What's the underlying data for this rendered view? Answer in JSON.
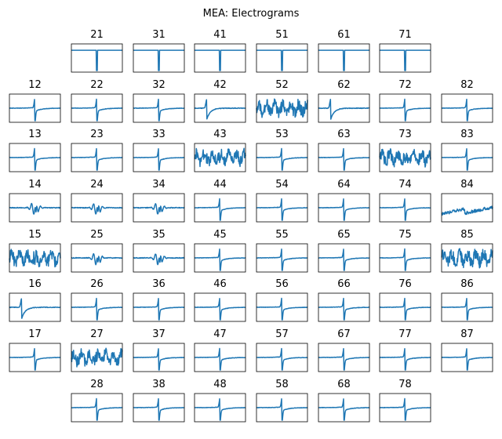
{
  "chart_data": {
    "type": "line",
    "title": "MEA: Electrograms",
    "layout": "8x8 grid of electrode panels, corner positions empty, no axis ticks",
    "color": "#1f77b4",
    "grid": false,
    "legend": "none",
    "panels": [
      {
        "label": "21",
        "row": 0,
        "col": 1,
        "shape": "spike"
      },
      {
        "label": "31",
        "row": 0,
        "col": 2,
        "shape": "spike"
      },
      {
        "label": "41",
        "row": 0,
        "col": 3,
        "shape": "spike"
      },
      {
        "label": "51",
        "row": 0,
        "col": 4,
        "shape": "spike"
      },
      {
        "label": "61",
        "row": 0,
        "col": 5,
        "shape": "spike"
      },
      {
        "label": "71",
        "row": 0,
        "col": 6,
        "shape": "spike"
      },
      {
        "label": "12",
        "row": 1,
        "col": 0,
        "shape": "biphasic"
      },
      {
        "label": "22",
        "row": 1,
        "col": 1,
        "shape": "biphasic"
      },
      {
        "label": "32",
        "row": 1,
        "col": 2,
        "shape": "biphasic"
      },
      {
        "label": "42",
        "row": 1,
        "col": 3,
        "shape": "early"
      },
      {
        "label": "52",
        "row": 1,
        "col": 4,
        "shape": "noise"
      },
      {
        "label": "62",
        "row": 1,
        "col": 5,
        "shape": "early"
      },
      {
        "label": "72",
        "row": 1,
        "col": 6,
        "shape": "biphasic"
      },
      {
        "label": "82",
        "row": 1,
        "col": 7,
        "shape": "biphasic"
      },
      {
        "label": "13",
        "row": 2,
        "col": 0,
        "shape": "biphasic"
      },
      {
        "label": "23",
        "row": 2,
        "col": 1,
        "shape": "biphasic"
      },
      {
        "label": "33",
        "row": 2,
        "col": 2,
        "shape": "biphasic"
      },
      {
        "label": "43",
        "row": 2,
        "col": 3,
        "shape": "noise"
      },
      {
        "label": "53",
        "row": 2,
        "col": 4,
        "shape": "biphasic"
      },
      {
        "label": "63",
        "row": 2,
        "col": 5,
        "shape": "biphasic"
      },
      {
        "label": "73",
        "row": 2,
        "col": 6,
        "shape": "noise"
      },
      {
        "label": "83",
        "row": 2,
        "col": 7,
        "shape": "biphasic"
      },
      {
        "label": "14",
        "row": 3,
        "col": 0,
        "shape": "multi"
      },
      {
        "label": "24",
        "row": 3,
        "col": 1,
        "shape": "multi"
      },
      {
        "label": "34",
        "row": 3,
        "col": 2,
        "shape": "multi"
      },
      {
        "label": "44",
        "row": 3,
        "col": 3,
        "shape": "biphasic"
      },
      {
        "label": "54",
        "row": 3,
        "col": 4,
        "shape": "biphasic"
      },
      {
        "label": "64",
        "row": 3,
        "col": 5,
        "shape": "biphasic"
      },
      {
        "label": "74",
        "row": 3,
        "col": 6,
        "shape": "biphasic"
      },
      {
        "label": "84",
        "row": 3,
        "col": 7,
        "shape": "drift"
      },
      {
        "label": "15",
        "row": 4,
        "col": 0,
        "shape": "noise"
      },
      {
        "label": "25",
        "row": 4,
        "col": 1,
        "shape": "multi"
      },
      {
        "label": "35",
        "row": 4,
        "col": 2,
        "shape": "multi"
      },
      {
        "label": "45",
        "row": 4,
        "col": 3,
        "shape": "biphasic"
      },
      {
        "label": "55",
        "row": 4,
        "col": 4,
        "shape": "biphasic"
      },
      {
        "label": "65",
        "row": 4,
        "col": 5,
        "shape": "biphasic"
      },
      {
        "label": "75",
        "row": 4,
        "col": 6,
        "shape": "biphasic"
      },
      {
        "label": "85",
        "row": 4,
        "col": 7,
        "shape": "noise"
      },
      {
        "label": "16",
        "row": 5,
        "col": 0,
        "shape": "early"
      },
      {
        "label": "26",
        "row": 5,
        "col": 1,
        "shape": "biphasic"
      },
      {
        "label": "36",
        "row": 5,
        "col": 2,
        "shape": "biphasic"
      },
      {
        "label": "46",
        "row": 5,
        "col": 3,
        "shape": "biphasic"
      },
      {
        "label": "56",
        "row": 5,
        "col": 4,
        "shape": "biphasic"
      },
      {
        "label": "66",
        "row": 5,
        "col": 5,
        "shape": "biphasic"
      },
      {
        "label": "76",
        "row": 5,
        "col": 6,
        "shape": "biphasic"
      },
      {
        "label": "86",
        "row": 5,
        "col": 7,
        "shape": "biphasic"
      },
      {
        "label": "17",
        "row": 6,
        "col": 0,
        "shape": "biphasic"
      },
      {
        "label": "27",
        "row": 6,
        "col": 1,
        "shape": "noise"
      },
      {
        "label": "37",
        "row": 6,
        "col": 2,
        "shape": "biphasic"
      },
      {
        "label": "47",
        "row": 6,
        "col": 3,
        "shape": "biphasic"
      },
      {
        "label": "57",
        "row": 6,
        "col": 4,
        "shape": "biphasic"
      },
      {
        "label": "67",
        "row": 6,
        "col": 5,
        "shape": "biphasic"
      },
      {
        "label": "77",
        "row": 6,
        "col": 6,
        "shape": "biphasic"
      },
      {
        "label": "87",
        "row": 6,
        "col": 7,
        "shape": "biphasic"
      },
      {
        "label": "28",
        "row": 7,
        "col": 1,
        "shape": "biphasic"
      },
      {
        "label": "38",
        "row": 7,
        "col": 2,
        "shape": "biphasic"
      },
      {
        "label": "48",
        "row": 7,
        "col": 3,
        "shape": "biphasic"
      },
      {
        "label": "58",
        "row": 7,
        "col": 4,
        "shape": "biphasic"
      },
      {
        "label": "68",
        "row": 7,
        "col": 5,
        "shape": "biphasic"
      },
      {
        "label": "78",
        "row": 7,
        "col": 6,
        "shape": "biphasic"
      }
    ]
  }
}
